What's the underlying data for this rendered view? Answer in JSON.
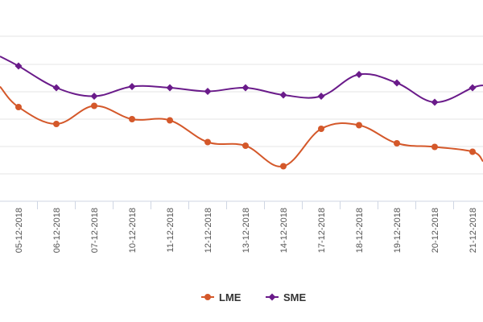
{
  "chart_data": {
    "type": "line",
    "title": "",
    "xlabel": "",
    "ylabel": "",
    "categories": [
      "05-12-2018",
      "06-12-2018",
      "07-12-2018",
      "10-12-2018",
      "11-12-2018",
      "12-12-2018",
      "13-12-2018",
      "14-12-2018",
      "17-12-2018",
      "18-12-2018",
      "19-12-2018",
      "20-12-2018",
      "21-12-2018"
    ],
    "series": [
      {
        "name": "LME",
        "color": "#d4582a",
        "marker": "circle",
        "values": [
          78,
          64,
          79,
          68,
          67,
          49,
          46,
          29,
          60,
          63,
          48,
          45,
          41
        ],
        "edge_left": 95,
        "edge_right": 33
      },
      {
        "name": "SME",
        "color": "#6a1b8a",
        "marker": "diamond",
        "values": [
          112,
          94,
          87,
          95,
          94,
          91,
          94,
          88,
          87,
          105,
          98,
          82,
          94
        ],
        "edge_left": 120,
        "edge_right": 96
      }
    ],
    "ylim": [
      0,
      160
    ],
    "grid": true,
    "legend_position": "bottom-center"
  }
}
